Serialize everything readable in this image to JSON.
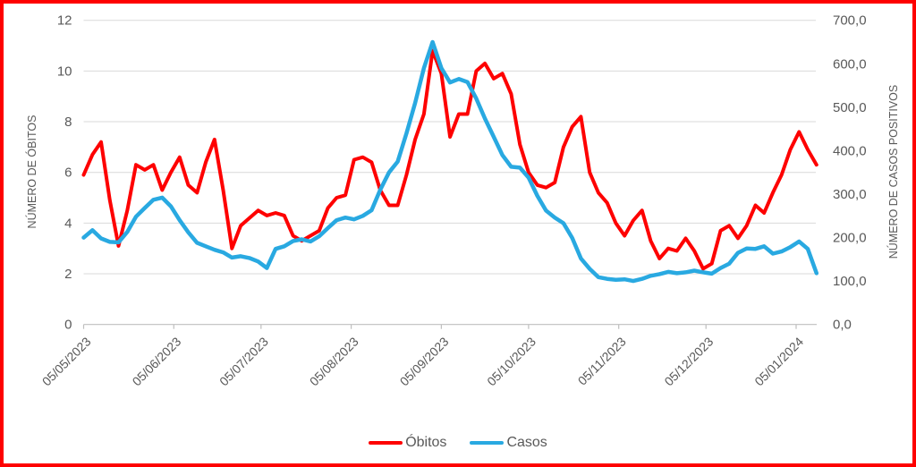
{
  "chart_data": {
    "type": "line",
    "title": "",
    "x": {
      "step_days": 3,
      "tick_labels": [
        "05/05/2023",
        "05/06/2023",
        "05/07/2023",
        "05/08/2023",
        "05/09/2023",
        "05/10/2023",
        "05/11/2023",
        "05/12/2023",
        "05/01/2024"
      ],
      "tick_day_offsets": [
        0,
        31,
        61,
        92,
        123,
        153,
        184,
        214,
        245
      ],
      "total_days": 252
    },
    "axes": {
      "left": {
        "label": "NÚMERO DE ÓBITOS",
        "min": 0,
        "max": 12,
        "tick_step": 2,
        "ticks": [
          "0",
          "2",
          "4",
          "6",
          "8",
          "10",
          "12"
        ]
      },
      "right": {
        "label": "NÚMERO DE CASOS POSITIVOS",
        "min": 0,
        "max": 700,
        "tick_step": 100,
        "ticks": [
          "0,0",
          "100,0",
          "200,0",
          "300,0",
          "400,0",
          "500,0",
          "600,0",
          "700,0"
        ]
      }
    },
    "grid": true,
    "legend": {
      "position": "bottom",
      "items": [
        {
          "label": "Óbitos",
          "color": "#fe0000"
        },
        {
          "label": "Casos",
          "color": "#29a9e1"
        }
      ]
    },
    "colors": {
      "text": "#595959",
      "gridline": "#d9d9d9",
      "axis_line": "#bfbfbf",
      "frame_border": "#fe0000",
      "background": "#ffffff",
      "obitos": "#fe0000",
      "casos": "#29a9e1"
    },
    "series": [
      {
        "name": "Óbitos",
        "axis": "left",
        "color": "#fe0000",
        "width": 4,
        "values": [
          5.9,
          6.7,
          7.2,
          4.9,
          3.1,
          4.5,
          6.3,
          6.1,
          6.3,
          5.3,
          6.0,
          6.6,
          5.5,
          5.2,
          6.4,
          7.3,
          5.3,
          3.0,
          3.9,
          4.2,
          4.5,
          4.3,
          4.4,
          4.3,
          3.5,
          3.3,
          3.5,
          3.7,
          4.6,
          5.0,
          5.1,
          6.5,
          6.6,
          6.4,
          5.3,
          4.7,
          4.7,
          5.9,
          7.3,
          8.3,
          10.8,
          9.9,
          7.4,
          8.3,
          8.3,
          10.0,
          10.3,
          9.7,
          9.9,
          9.1,
          7.1,
          6.0,
          5.5,
          5.4,
          5.6,
          7.0,
          7.8,
          8.2,
          6.0,
          5.2,
          4.8,
          4.0,
          3.5,
          4.1,
          4.5,
          3.3,
          2.6,
          3.0,
          2.9,
          3.4,
          2.9,
          2.2,
          2.4,
          3.7,
          3.9,
          3.4,
          3.9,
          4.7,
          4.4,
          5.2,
          5.9,
          6.9,
          7.6,
          6.9,
          6.3
        ]
      },
      {
        "name": "Casos",
        "axis": "right",
        "color": "#29a9e1",
        "width": 4.5,
        "values": [
          200,
          217,
          198,
          190,
          189,
          213,
          248,
          268,
          287,
          292,
          272,
          240,
          212,
          188,
          180,
          172,
          166,
          154,
          157,
          153,
          145,
          130,
          174,
          180,
          192,
          196,
          191,
          203,
          222,
          240,
          246,
          242,
          250,
          263,
          310,
          350,
          375,
          440,
          510,
          590,
          650,
          590,
          557,
          565,
          558,
          520,
          474,
          432,
          390,
          363,
          361,
          338,
          296,
          262,
          246,
          233,
          199,
          152,
          128,
          109,
          105,
          103,
          104,
          100,
          105,
          112,
          116,
          121,
          118,
          120,
          124,
          120,
          117,
          130,
          140,
          165,
          175,
          174,
          180,
          163,
          168,
          178,
          191,
          174,
          118
        ]
      }
    ]
  }
}
